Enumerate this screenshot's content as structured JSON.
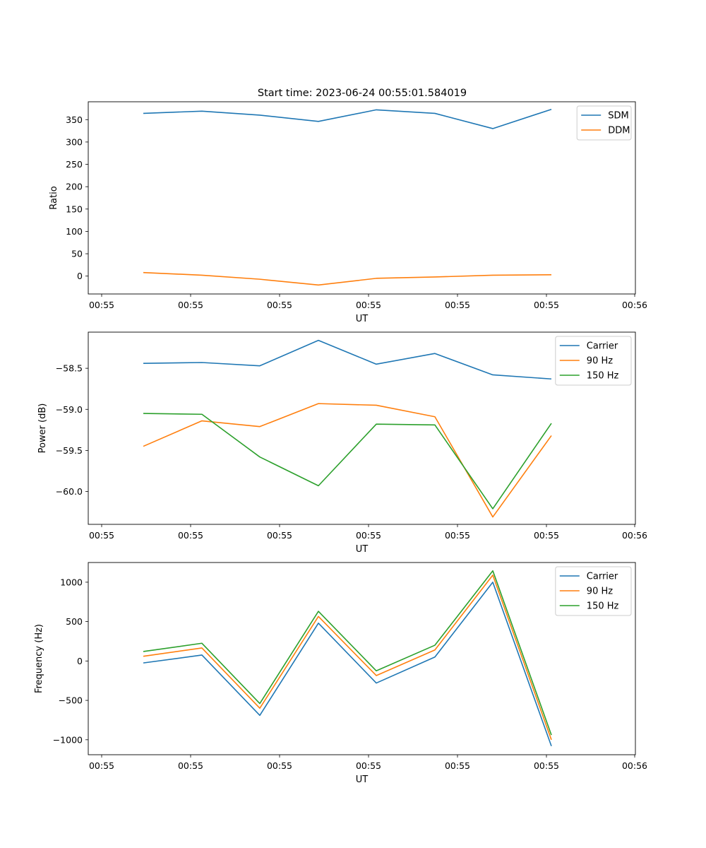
{
  "figure": {
    "title": "Start time: 2023-06-24 00:55:01.584019"
  },
  "chart_data": [
    {
      "type": "line",
      "title": "Start time: 2023-06-24 00:55:01.584019",
      "xlabel": "UT",
      "ylabel": "Ratio",
      "x_tick_labels": [
        "00:55",
        "00:55",
        "00:55",
        "00:55",
        "00:55",
        "00:55",
        "00:56"
      ],
      "y_ticks": [
        0,
        50,
        100,
        150,
        200,
        250,
        300,
        350
      ],
      "ylim": [
        -40,
        390
      ],
      "legend_position": "top-right",
      "series": [
        {
          "name": "SDM",
          "color": "#1f77b4",
          "values": [
            364,
            369,
            360,
            346,
            372,
            364,
            330,
            373
          ]
        },
        {
          "name": "DDM",
          "color": "#ff7f0e",
          "values": [
            8,
            2,
            -7,
            -20,
            -5,
            -2,
            2,
            3
          ]
        }
      ]
    },
    {
      "type": "line",
      "xlabel": "UT",
      "ylabel": "Power (dB)",
      "x_tick_labels": [
        "00:55",
        "00:55",
        "00:55",
        "00:55",
        "00:55",
        "00:55",
        "00:56"
      ],
      "y_ticks": [
        -60.0,
        -59.5,
        -59.0,
        -58.5
      ],
      "y_tick_labels": [
        "−60.0",
        "−59.5",
        "−59.0",
        "−58.5"
      ],
      "ylim": [
        -60.4,
        -58.06
      ],
      "legend_position": "top-right",
      "series": [
        {
          "name": "Carrier",
          "color": "#1f77b4",
          "values": [
            -58.44,
            -58.43,
            -58.47,
            -58.16,
            -58.45,
            -58.32,
            -58.58,
            -58.63
          ]
        },
        {
          "name": "90 Hz",
          "color": "#ff7f0e",
          "values": [
            -59.45,
            -59.14,
            -59.21,
            -58.93,
            -58.95,
            -59.09,
            -60.31,
            -59.32
          ]
        },
        {
          "name": "150 Hz",
          "color": "#2ca02c",
          "values": [
            -59.05,
            -59.06,
            -59.58,
            -59.93,
            -59.18,
            -59.19,
            -60.21,
            -59.17
          ]
        }
      ]
    },
    {
      "type": "line",
      "xlabel": "UT",
      "ylabel": "Frequency (Hz)",
      "x_tick_labels": [
        "00:55",
        "00:55",
        "00:55",
        "00:55",
        "00:55",
        "00:55",
        "00:56"
      ],
      "y_ticks": [
        -1000,
        -500,
        0,
        500,
        1000
      ],
      "y_tick_labels": [
        "−1000",
        "−500",
        "0",
        "500",
        "1000"
      ],
      "ylim": [
        -1190,
        1250
      ],
      "legend_position": "top-right",
      "series": [
        {
          "name": "Carrier",
          "color": "#1f77b4",
          "values": [
            -25,
            75,
            -690,
            480,
            -280,
            50,
            1000,
            -1080
          ]
        },
        {
          "name": "90 Hz",
          "color": "#ff7f0e",
          "values": [
            60,
            165,
            -600,
            565,
            -185,
            140,
            1090,
            -1000
          ]
        },
        {
          "name": "150 Hz",
          "color": "#2ca02c",
          "values": [
            120,
            225,
            -540,
            630,
            -125,
            200,
            1145,
            -940
          ]
        }
      ]
    }
  ]
}
